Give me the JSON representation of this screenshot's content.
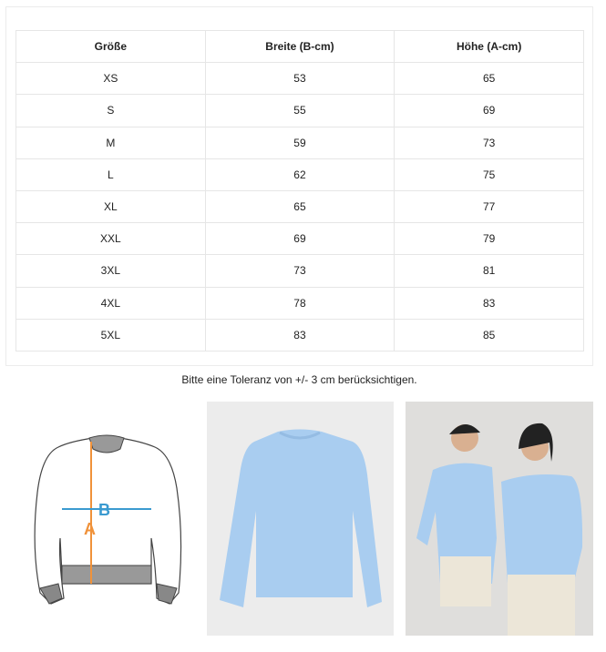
{
  "size_table": {
    "headers": [
      "Größe",
      "Breite (B-cm)",
      "Höhe (A-cm)"
    ],
    "rows": [
      [
        "XS",
        "53",
        "65"
      ],
      [
        "S",
        "55",
        "69"
      ],
      [
        "M",
        "59",
        "73"
      ],
      [
        "L",
        "62",
        "75"
      ],
      [
        "XL",
        "65",
        "77"
      ],
      [
        "XXL",
        "69",
        "79"
      ],
      [
        "3XL",
        "73",
        "81"
      ],
      [
        "4XL",
        "78",
        "83"
      ],
      [
        "5XL",
        "83",
        "85"
      ]
    ]
  },
  "note": "Bitte eine Toleranz von +/- 3 cm berücksichtigen.",
  "diagram": {
    "label_a": "A",
    "label_b": "B",
    "color_a": "#f0923a",
    "color_b": "#3a9ad0"
  },
  "product_color": "#a9cdf0"
}
